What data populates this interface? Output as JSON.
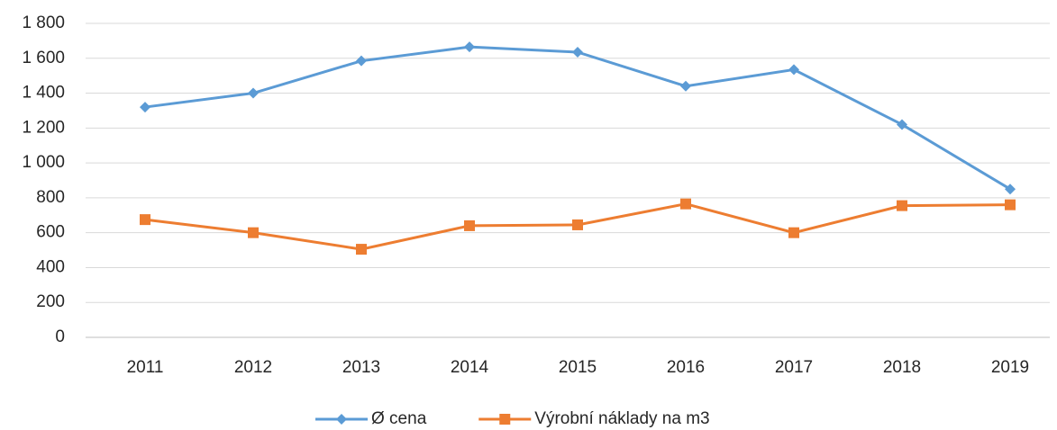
{
  "chart_data": {
    "type": "line",
    "categories": [
      "2011",
      "2012",
      "2013",
      "2014",
      "2015",
      "2016",
      "2017",
      "2018",
      "2019"
    ],
    "series": [
      {
        "name": "Ø cena",
        "color": "#5b9bd5",
        "marker": "diamond",
        "values": [
          1320,
          1400,
          1585,
          1665,
          1635,
          1440,
          1535,
          1220,
          850
        ]
      },
      {
        "name": "Výrobní náklady na m3",
        "color": "#ed7d31",
        "marker": "square",
        "values": [
          675,
          600,
          505,
          640,
          645,
          765,
          600,
          755,
          760
        ]
      }
    ],
    "ylim": [
      0,
      1800
    ],
    "yticks": [
      0,
      200,
      400,
      600,
      800,
      {
        "value": 1000,
        "label": "1 000"
      },
      {
        "value": 1200,
        "label": "1 200"
      },
      {
        "value": 1400,
        "label": "1 400"
      },
      {
        "value": 1600,
        "label": "1 600"
      },
      {
        "value": 1800,
        "label": "1 800"
      }
    ],
    "grid": true,
    "legend": "bottom"
  }
}
